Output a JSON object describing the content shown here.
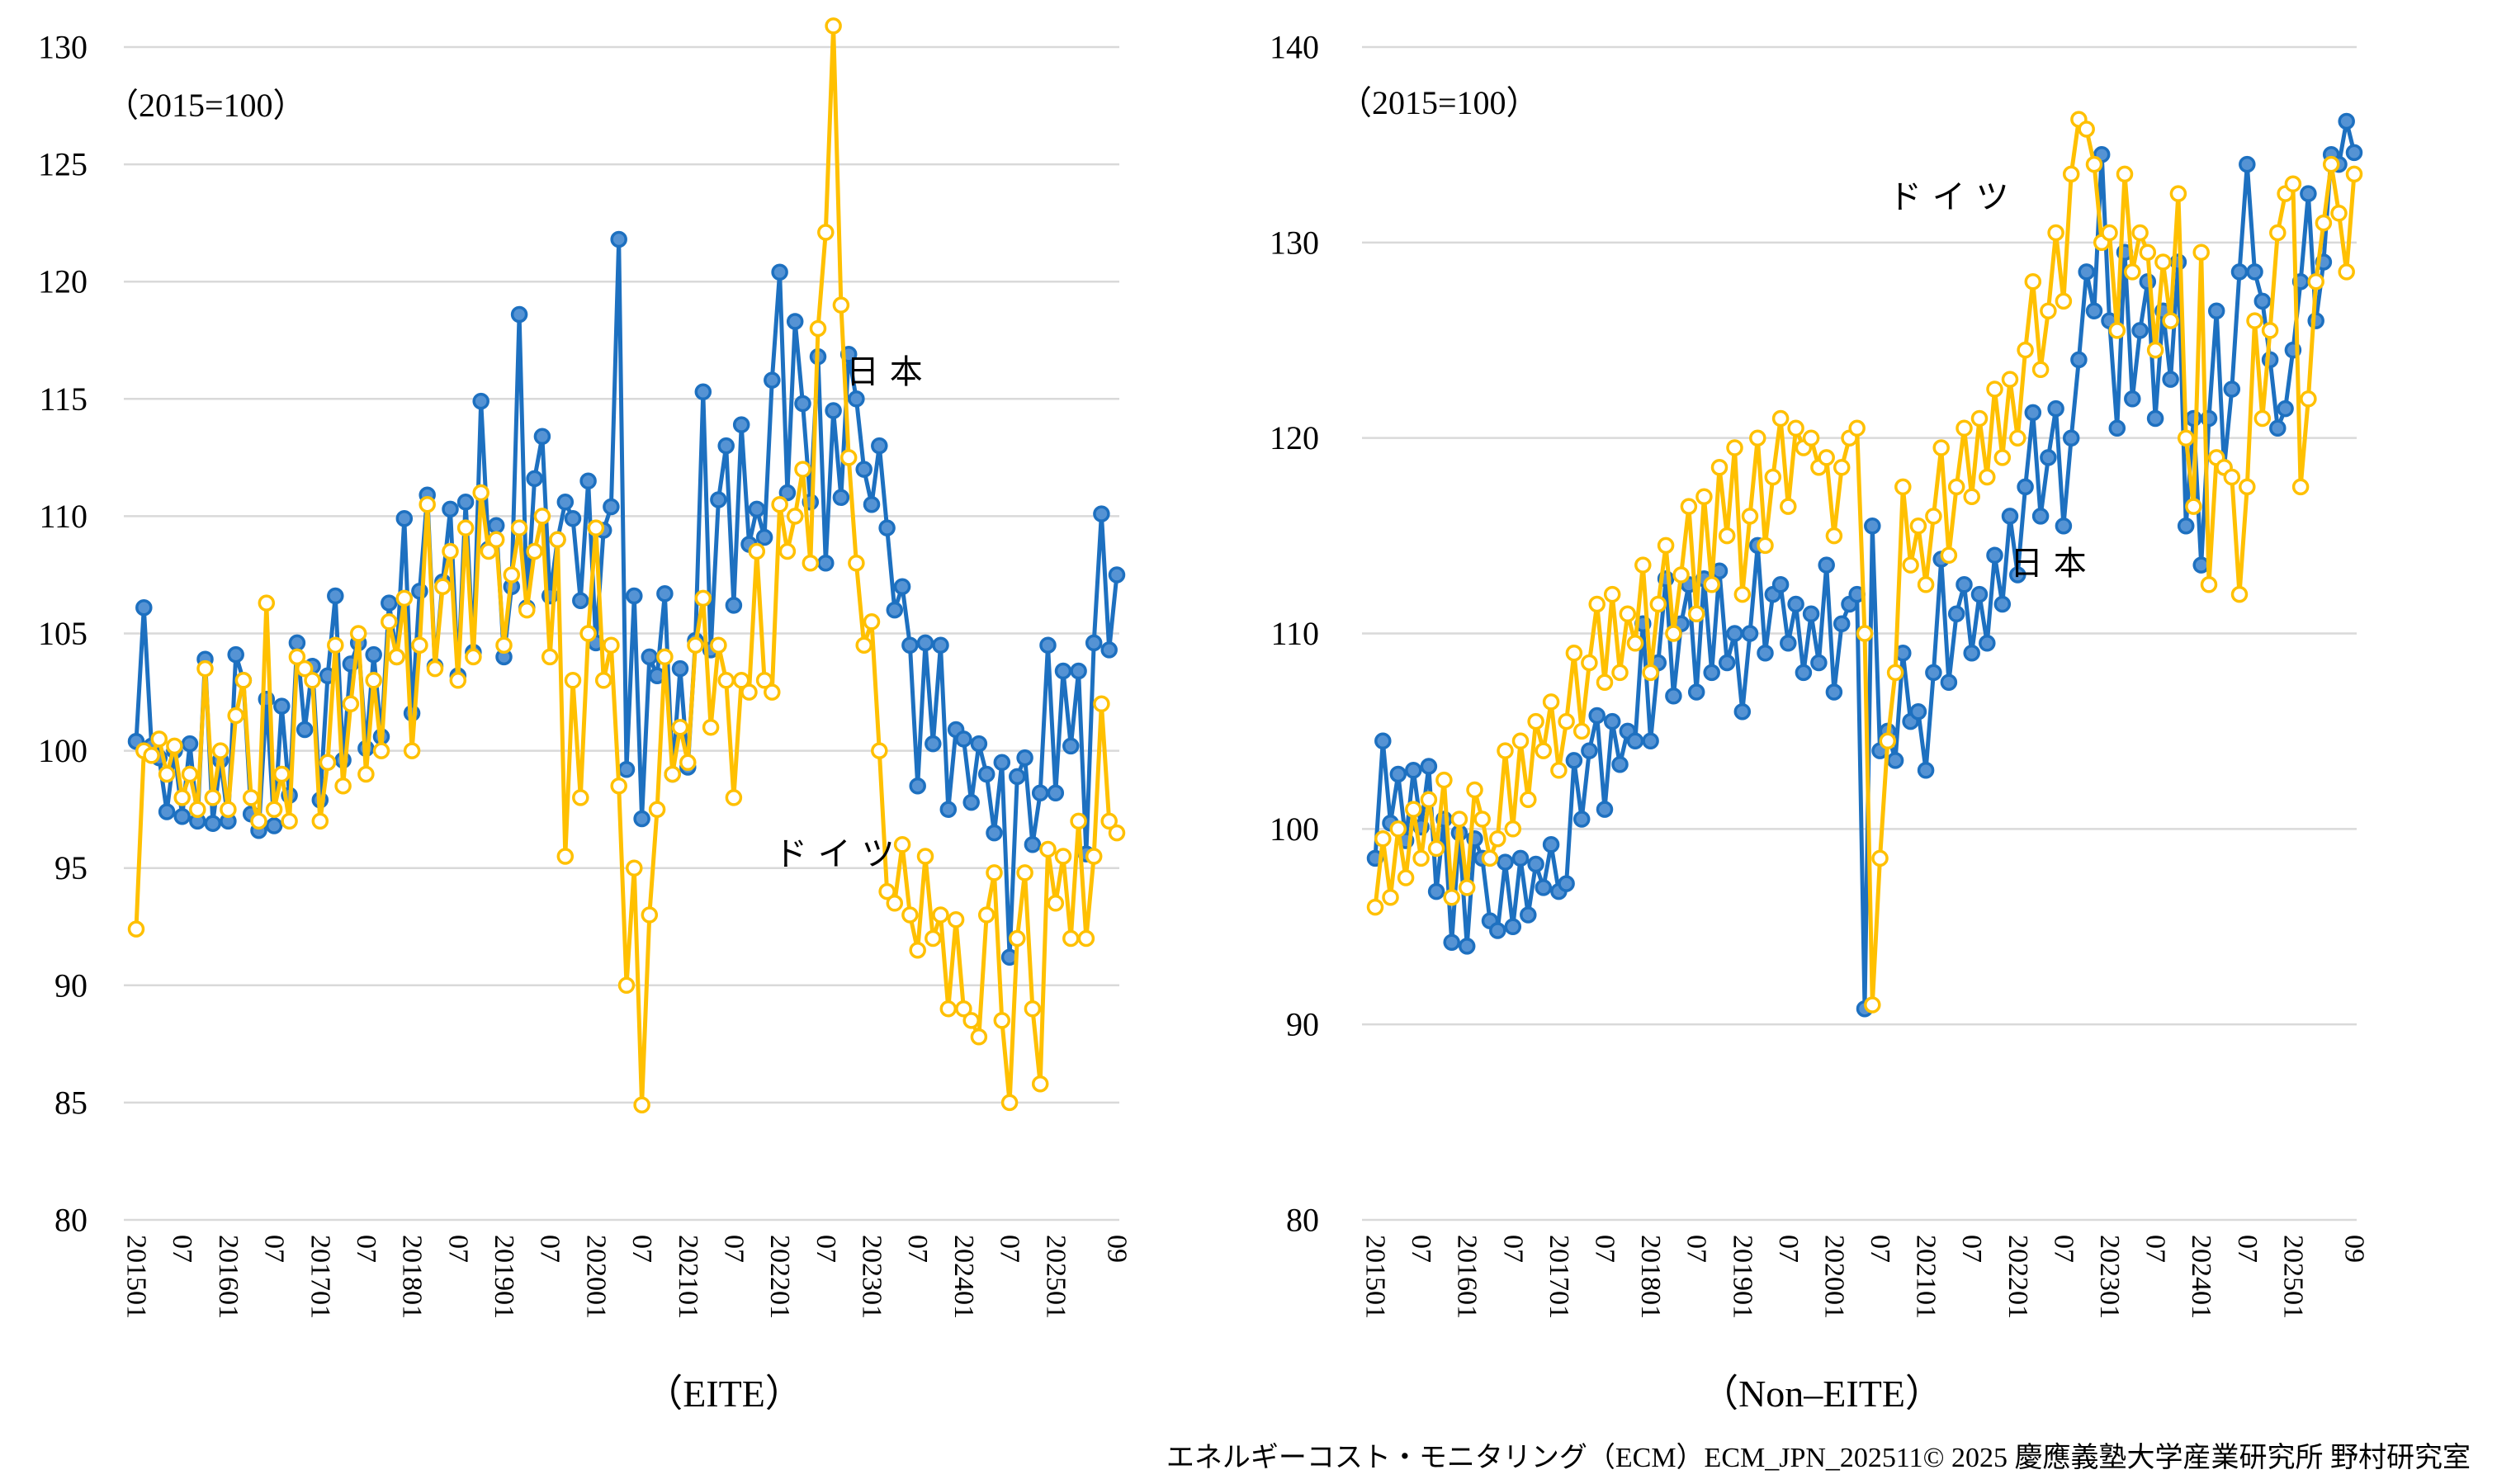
{
  "page": {
    "background": "#FFFFFF"
  },
  "footer": {
    "text": "エネルギーコスト・モニタリング（ECM）ECM_JPN_202511© 2025 慶應義塾大学産業研究所 野村研究室"
  },
  "chart_data": [
    {
      "type": "line",
      "title": "（EITE）",
      "unit_note": "（2015=100）",
      "x_start_month": "201501",
      "x_end_month": "202509",
      "xtick_labels": [
        "201501",
        "07",
        "201601",
        "07",
        "201701",
        "07",
        "201801",
        "07",
        "201901",
        "07",
        "202001",
        "07",
        "202101",
        "07",
        "202201",
        "07",
        "202301",
        "07",
        "202401",
        "07",
        "202501",
        "09"
      ],
      "ylim": [
        80,
        130
      ],
      "yticks": [
        130,
        125,
        120,
        115,
        110,
        105,
        100,
        95,
        90,
        85,
        80
      ],
      "grid": true,
      "gridline_color": "#D9D9D9",
      "annotations": [
        {
          "text": "日本",
          "series": "日本"
        },
        {
          "text": "ドイツ",
          "series": "ドイツ"
        }
      ],
      "series": [
        {
          "name": "日本",
          "line_color": "#1D70C0",
          "marker": "circle-filled",
          "marker_fill": "#5593D4",
          "values": [
            100.4,
            106.1,
            100.2,
            99.7,
            97.4,
            100.0,
            97.2,
            100.3,
            97.0,
            103.9,
            96.9,
            99.6,
            97.0,
            104.1,
            103.0,
            97.3,
            96.6,
            102.2,
            96.8,
            101.9,
            98.1,
            104.6,
            100.9,
            103.6,
            97.9,
            103.2,
            106.6,
            99.6,
            103.7,
            104.6,
            100.1,
            104.1,
            100.6,
            106.3,
            104.0,
            109.9,
            101.6,
            106.8,
            110.9,
            103.6,
            107.2,
            110.3,
            103.2,
            110.6,
            104.2,
            114.9,
            108.6,
            109.6,
            104.0,
            107.0,
            118.6,
            106.1,
            111.6,
            113.4,
            106.6,
            109.0,
            110.6,
            109.9,
            106.4,
            111.5,
            104.6,
            109.4,
            110.4,
            121.8,
            99.2,
            106.6,
            97.1,
            104.0,
            103.2,
            106.7,
            99.0,
            103.5,
            99.3,
            104.7,
            115.3,
            104.3,
            110.7,
            113.0,
            106.2,
            113.9,
            108.8,
            110.3,
            109.1,
            115.8,
            120.4,
            111.0,
            118.3,
            114.8,
            110.6,
            116.8,
            108.0,
            114.5,
            110.8,
            116.9,
            115.0,
            112.0,
            110.5,
            113.0,
            109.5,
            106.0,
            107.0,
            104.5,
            98.5,
            104.6,
            100.3,
            104.5,
            97.5,
            100.9,
            100.5,
            97.8,
            100.3,
            99.0,
            96.5,
            99.5,
            91.2,
            98.9,
            99.7,
            96.0,
            98.2,
            104.5,
            98.2,
            103.4,
            100.2,
            103.4,
            95.6,
            104.6,
            110.1,
            104.3,
            107.5
          ]
        },
        {
          "name": "ドイツ",
          "line_color": "#FFC000",
          "marker": "circle-open",
          "marker_fill": "#FFFFFF",
          "values": [
            92.4,
            100.0,
            99.8,
            100.5,
            99.0,
            100.2,
            98.0,
            99.0,
            97.5,
            103.5,
            98.0,
            100.0,
            97.5,
            101.5,
            103.0,
            98.0,
            97.0,
            106.3,
            97.5,
            99.0,
            97.0,
            104.0,
            103.5,
            103.0,
            97.0,
            99.5,
            104.5,
            98.5,
            102.0,
            105.0,
            99.0,
            103.0,
            100.0,
            105.5,
            104.0,
            106.5,
            100.0,
            104.5,
            110.5,
            103.5,
            107.0,
            108.5,
            103.0,
            109.5,
            104.0,
            111.0,
            108.5,
            109.0,
            104.5,
            107.5,
            109.5,
            106.0,
            108.5,
            110.0,
            104.0,
            109.0,
            95.5,
            103.0,
            98.0,
            105.0,
            109.5,
            103.0,
            104.5,
            98.5,
            90.0,
            95.0,
            84.9,
            93.0,
            97.5,
            104.0,
            99.0,
            101.0,
            99.5,
            104.5,
            106.5,
            101.0,
            104.5,
            103.0,
            98.0,
            103.0,
            102.5,
            108.5,
            103.0,
            102.5,
            110.5,
            108.5,
            110.0,
            112.0,
            108.0,
            118.0,
            122.1,
            130.9,
            119.0,
            112.5,
            108.0,
            104.5,
            105.5,
            100.0,
            94.0,
            93.5,
            96.0,
            93.0,
            91.5,
            95.5,
            92.0,
            93.0,
            89.0,
            92.8,
            89.0,
            88.5,
            87.8,
            93.0,
            94.8,
            88.5,
            85.0,
            92.0,
            94.8,
            89.0,
            85.8,
            95.8,
            93.5,
            95.5,
            92.0,
            97.0,
            92.0,
            95.5,
            102.0,
            97.0,
            96.5
          ]
        }
      ]
    },
    {
      "type": "line",
      "title": "（Non–EITE）",
      "unit_note": "（2015=100）",
      "x_start_month": "201501",
      "x_end_month": "202509",
      "xtick_labels": [
        "201501",
        "07",
        "201601",
        "07",
        "201701",
        "07",
        "201801",
        "07",
        "201901",
        "07",
        "202001",
        "07",
        "202101",
        "07",
        "202201",
        "07",
        "202301",
        "07",
        "202401",
        "07",
        "202501",
        "09"
      ],
      "ylim": [
        80,
        140
      ],
      "yticks": [
        140,
        130,
        120,
        110,
        100,
        90,
        80
      ],
      "grid": true,
      "gridline_color": "#D9D9D9",
      "annotations": [
        {
          "text": "ドイツ",
          "series": "ドイツ"
        },
        {
          "text": "日本",
          "series": "日本"
        }
      ],
      "series": [
        {
          "name": "日本",
          "line_color": "#1D70C0",
          "marker": "circle-filled",
          "marker_fill": "#5593D4",
          "values": [
            98.5,
            104.5,
            100.3,
            102.8,
            99.4,
            103.0,
            100.1,
            103.2,
            96.8,
            100.5,
            94.2,
            99.8,
            94.0,
            99.5,
            98.5,
            95.3,
            94.8,
            98.3,
            95.0,
            98.5,
            95.6,
            98.2,
            97.0,
            99.2,
            96.8,
            97.2,
            103.5,
            100.5,
            104.0,
            105.8,
            101.0,
            105.5,
            103.3,
            105.0,
            104.5,
            110.5,
            104.5,
            108.5,
            112.8,
            106.8,
            110.5,
            112.5,
            107.0,
            112.8,
            108.0,
            113.2,
            108.5,
            110.0,
            106.0,
            110.0,
            114.5,
            109.0,
            112.0,
            112.5,
            109.5,
            111.5,
            108.0,
            111.0,
            108.5,
            113.5,
            107.0,
            110.5,
            111.5,
            112.0,
            90.8,
            115.5,
            104.0,
            105.0,
            103.5,
            109.0,
            105.5,
            106.0,
            103.0,
            108.0,
            113.8,
            107.5,
            111.0,
            112.5,
            109.0,
            112.0,
            109.5,
            114.0,
            111.5,
            116.0,
            113.0,
            117.5,
            121.3,
            116.0,
            119.0,
            121.5,
            115.5,
            120.0,
            124.0,
            128.5,
            126.5,
            134.5,
            126.0,
            120.5,
            129.5,
            122.0,
            125.5,
            128.0,
            121.0,
            126.5,
            123.0,
            129.0,
            115.5,
            121.0,
            113.5,
            121.0,
            126.5,
            118.5,
            122.5,
            128.5,
            134.0,
            128.5,
            127.0,
            124.0,
            120.5,
            121.5,
            124.5,
            128.0,
            132.5,
            126.0,
            129.0,
            134.5,
            134.0,
            136.2,
            134.6
          ]
        },
        {
          "name": "ドイツ",
          "line_color": "#FFC000",
          "marker": "circle-open",
          "marker_fill": "#FFFFFF",
          "values": [
            96.0,
            99.5,
            96.5,
            100.0,
            97.5,
            101.0,
            98.5,
            101.5,
            99.0,
            102.5,
            96.5,
            100.5,
            97.0,
            102.0,
            100.5,
            98.5,
            99.5,
            104.0,
            100.0,
            104.5,
            101.5,
            105.5,
            104.0,
            106.5,
            103.0,
            105.5,
            109.0,
            105.0,
            108.5,
            111.5,
            107.5,
            112.0,
            108.0,
            111.0,
            109.5,
            113.5,
            108.0,
            111.5,
            114.5,
            110.0,
            113.0,
            116.5,
            111.0,
            117.0,
            112.5,
            118.5,
            115.0,
            119.5,
            112.0,
            116.0,
            120.0,
            114.5,
            118.0,
            121.0,
            116.5,
            120.5,
            119.5,
            120.0,
            118.5,
            119.0,
            115.0,
            118.5,
            120.0,
            120.5,
            110.0,
            91.0,
            98.5,
            104.5,
            108.0,
            117.5,
            113.5,
            115.5,
            112.5,
            116.0,
            119.5,
            114.0,
            117.5,
            120.5,
            117.0,
            121.0,
            118.0,
            122.5,
            119.0,
            123.0,
            120.0,
            124.5,
            128.0,
            123.5,
            126.5,
            130.5,
            127.0,
            133.5,
            136.3,
            135.8,
            134.0,
            130.0,
            130.5,
            125.5,
            133.5,
            128.5,
            130.5,
            129.5,
            124.5,
            129.0,
            126.0,
            132.5,
            120.0,
            116.5,
            129.5,
            112.5,
            119.0,
            118.5,
            118.0,
            112.0,
            117.5,
            126.0,
            121.0,
            125.5,
            130.5,
            132.5,
            133.0,
            117.5,
            122.0,
            128.0,
            131.0,
            134.0,
            131.5,
            128.5,
            133.5
          ]
        }
      ]
    }
  ]
}
